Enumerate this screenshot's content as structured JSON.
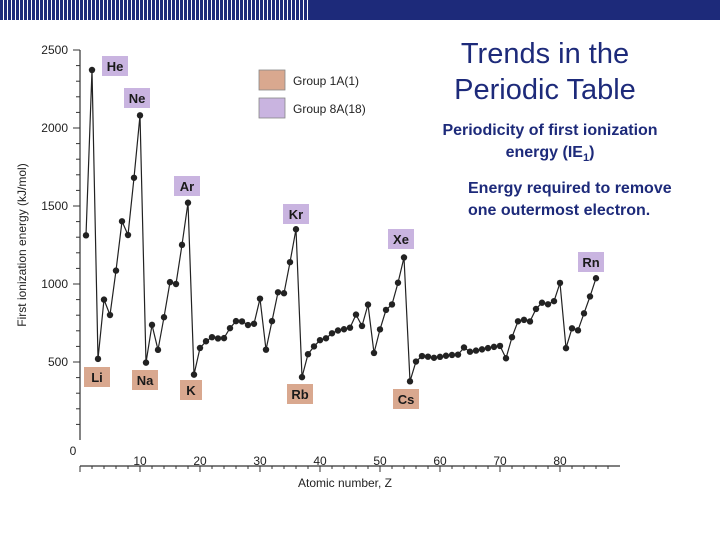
{
  "slide": {
    "title_line1": "Trends in the",
    "title_line2": "Periodic Table",
    "subtitle_text": "Periodicity of first ionization energy (IE",
    "subtitle_sub": "1",
    "subtitle_end": ")",
    "note": "Energy required to remove one outermost electron."
  },
  "colors": {
    "header_bar": "#1d2a7a",
    "text": "#1d2a7a",
    "group1a_box": "#d9a88f",
    "group8a_box": "#c9b4e0",
    "line": "#222222"
  },
  "chart_data": {
    "type": "line",
    "xlabel": "Atomic number, Z",
    "ylabel": "First ionization energy (kJ/mol)",
    "xlim": [
      0,
      90
    ],
    "ylim": [
      0,
      2500
    ],
    "xticks": [
      0,
      10,
      20,
      30,
      40,
      50,
      60,
      70,
      80
    ],
    "yticks": [
      500,
      1000,
      1500,
      2000,
      2500
    ],
    "grid": false,
    "legend": [
      {
        "label": "Group 1A(1)",
        "color": "#d9a88f"
      },
      {
        "label": "Group 8A(18)",
        "color": "#c9b4e0"
      }
    ],
    "x": [
      1,
      2,
      3,
      4,
      5,
      6,
      7,
      8,
      9,
      10,
      11,
      12,
      13,
      14,
      15,
      16,
      17,
      18,
      19,
      20,
      21,
      22,
      23,
      24,
      25,
      26,
      27,
      28,
      29,
      30,
      31,
      32,
      33,
      34,
      35,
      36,
      37,
      38,
      39,
      40,
      41,
      42,
      43,
      44,
      45,
      46,
      47,
      48,
      49,
      50,
      51,
      52,
      53,
      54,
      55,
      56,
      57,
      58,
      59,
      60,
      61,
      62,
      63,
      64,
      65,
      66,
      67,
      68,
      69,
      70,
      71,
      72,
      73,
      74,
      75,
      76,
      77,
      78,
      79,
      80,
      81,
      82,
      83,
      84,
      85,
      86
    ],
    "y": [
      1312,
      2372,
      520,
      900,
      801,
      1086,
      1402,
      1314,
      1681,
      2081,
      496,
      738,
      578,
      787,
      1012,
      1000,
      1251,
      1521,
      419,
      590,
      633,
      659,
      651,
      653,
      717,
      762,
      760,
      737,
      745,
      906,
      579,
      762,
      947,
      941,
      1140,
      1351,
      403,
      550,
      600,
      640,
      652,
      684,
      702,
      710,
      720,
      804,
      731,
      868,
      558,
      709,
      834,
      869,
      1008,
      1170,
      376,
      503,
      538,
      534,
      527,
      533,
      540,
      545,
      547,
      593,
      566,
      573,
      581,
      589,
      597,
      603,
      524,
      659,
      761,
      770,
      760,
      840,
      880,
      870,
      890,
      1007,
      589,
      716,
      703,
      812,
      920,
      1037
    ],
    "labels": [
      {
        "text": "He",
        "z": 2,
        "group": "8A"
      },
      {
        "text": "Ne",
        "z": 10,
        "group": "8A"
      },
      {
        "text": "Ar",
        "z": 18,
        "group": "8A"
      },
      {
        "text": "Kr",
        "z": 36,
        "group": "8A"
      },
      {
        "text": "Xe",
        "z": 54,
        "group": "8A"
      },
      {
        "text": "Rn",
        "z": 86,
        "group": "8A"
      },
      {
        "text": "Li",
        "z": 3,
        "group": "1A"
      },
      {
        "text": "Na",
        "z": 11,
        "group": "1A"
      },
      {
        "text": "K",
        "z": 19,
        "group": "1A"
      },
      {
        "text": "Rb",
        "z": 37,
        "group": "1A"
      },
      {
        "text": "Cs",
        "z": 55,
        "group": "1A"
      }
    ]
  }
}
